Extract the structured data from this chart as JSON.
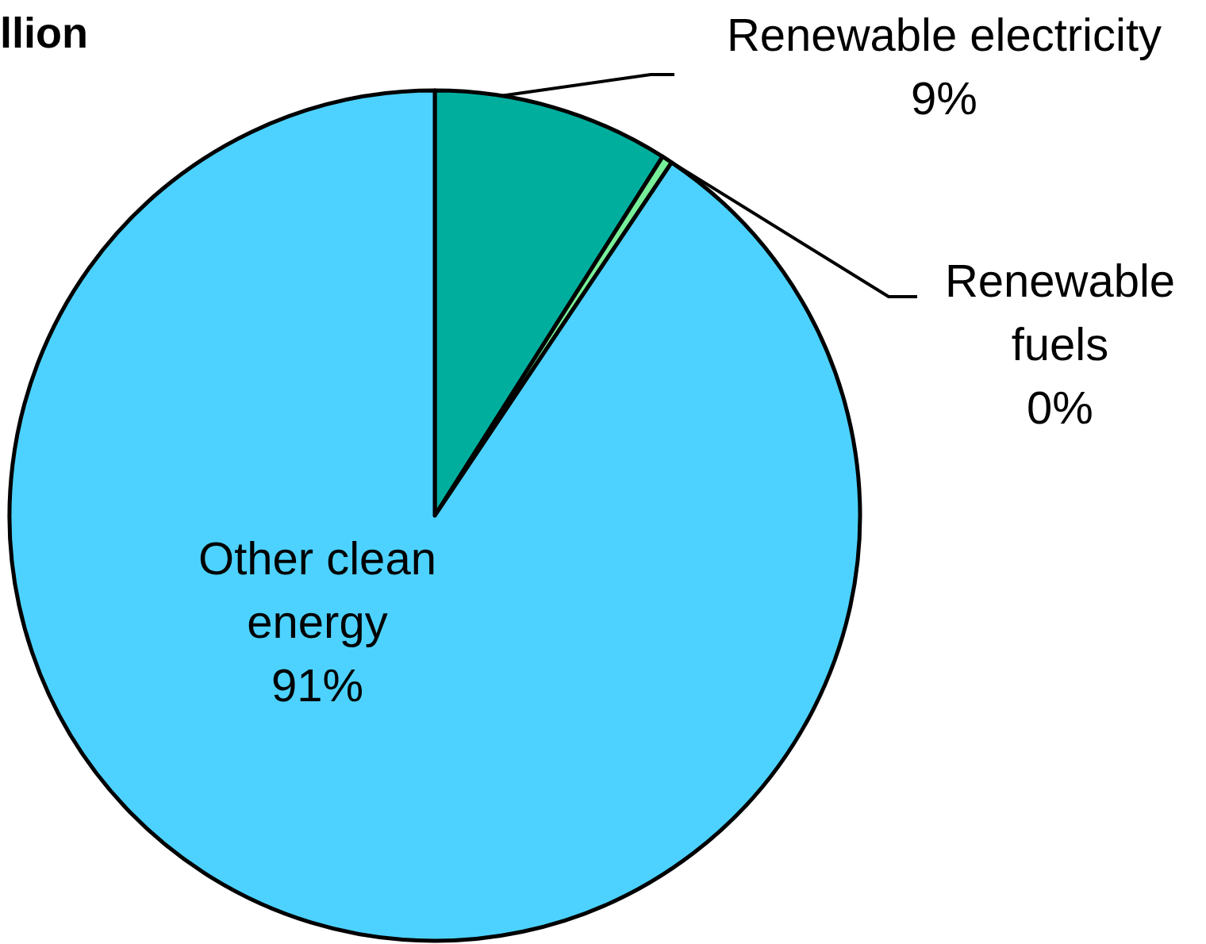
{
  "chart_data": {
    "type": "pie",
    "title": "llion",
    "categories": [
      "Renewable electricity",
      "Renewable fuels",
      "Other clean energy"
    ],
    "values": [
      9,
      0.4,
      90.6
    ],
    "value_labels": [
      "9%",
      "0%",
      "91%"
    ],
    "colors": [
      "#00ae9e",
      "#77ee99",
      "#4dd2ff"
    ]
  }
}
